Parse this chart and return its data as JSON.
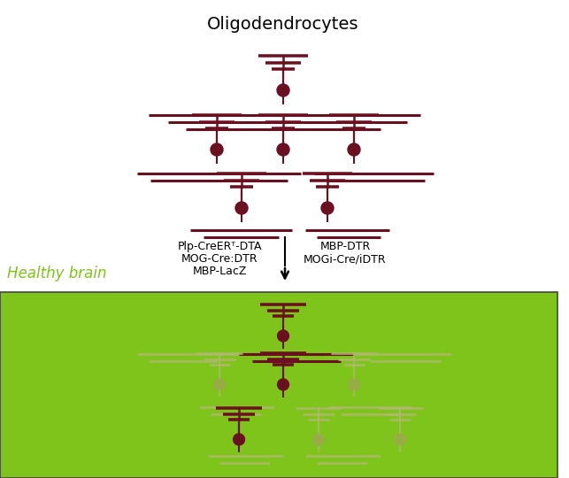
{
  "title": "Oligodendrocytes",
  "healthy_brain_label": "Healthy brain",
  "arrow_left_lines": [
    "Plp-CreERᵀ-DTA",
    "MOG-Cre:DTR",
    "MBP-LacZ"
  ],
  "arrow_right_lines": [
    "MBP-DTR",
    "MOGi-Cre/iDTR"
  ],
  "oligo_color": "#6b1020",
  "oligo_faded_color": "#9faa50",
  "oligo_faded_line": "#b0b870",
  "bg_green": "#7ec41a",
  "line_color": "#6b1020",
  "fig_width": 6.43,
  "fig_height": 5.4,
  "dpi": 100
}
